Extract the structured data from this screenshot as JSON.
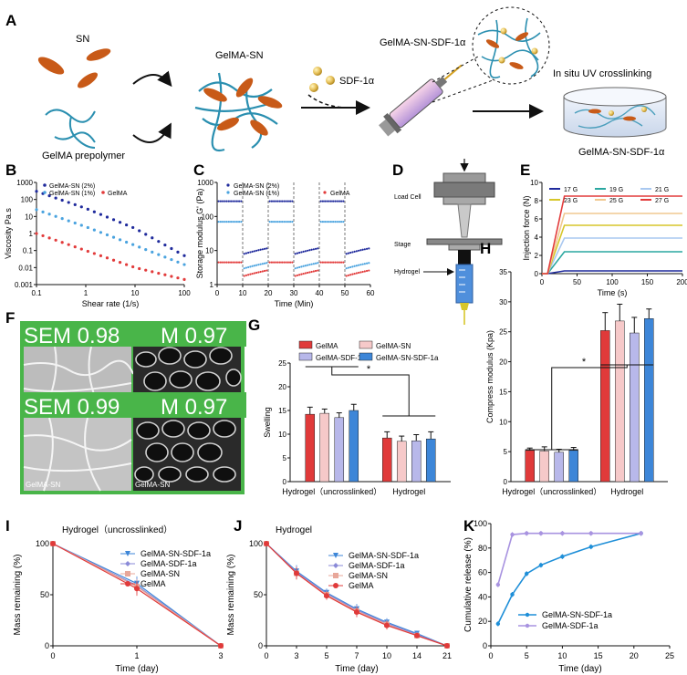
{
  "panels": {
    "A": {
      "letter": "A",
      "sn_label": "SN",
      "prepolymer_label": "GelMA prepolymer",
      "gelma_sn_label": "GelMA-SN",
      "sdf_label": "SDF-1α",
      "syringe_label": "GelMA-SN-SDF-1α",
      "uv_label": "In situ UV crosslinking",
      "dish_label": "GelMA-SN-SDF-1α"
    },
    "D": {
      "letter": "D",
      "load_cell": "Load Cell",
      "stage": "Stage",
      "hydrogel": "Hydrogel"
    },
    "F": {
      "letter": "F",
      "banners": [
        {
          "text": "SEM 0.98"
        },
        {
          "text": "M 0.97"
        },
        {
          "text": "SEM 0.99"
        },
        {
          "text": "M 0.97"
        }
      ],
      "captions": [
        "GelMA-SN",
        "GelMA-SN"
      ]
    }
  },
  "chart_data": [
    {
      "id": "B",
      "type": "scatter",
      "title": "",
      "xlabel": "Shear rate (1/s)",
      "ylabel": "Viscosity Pa.s",
      "xscale": "log",
      "yscale": "log",
      "xlim": [
        0.1,
        100
      ],
      "ylim": [
        0.001,
        1000
      ],
      "xticks": [
        "0.1",
        "1",
        "10",
        "100"
      ],
      "yticks": [
        "0.001",
        "0.01",
        "0.1",
        "1",
        "10",
        "100",
        "1000"
      ],
      "legend": [
        "GelMA-SN (2%)",
        "GelMA-SN (1%)",
        "GelMA"
      ],
      "colors": [
        "#1f2a9c",
        "#4aa3df",
        "#e23b3b"
      ],
      "series": [
        {
          "name": "GelMA-SN (2%)",
          "x": [
            0.1,
            1,
            10,
            100
          ],
          "y": [
            300,
            30,
            2,
            0.05
          ]
        },
        {
          "name": "GelMA-SN (1%)",
          "x": [
            0.1,
            1,
            10,
            100
          ],
          "y": [
            25,
            2.5,
            0.2,
            0.015
          ]
        },
        {
          "name": "GelMA",
          "x": [
            0.1,
            1,
            10,
            100
          ],
          "y": [
            1,
            0.1,
            0.01,
            0.002
          ]
        }
      ]
    },
    {
      "id": "C",
      "type": "scatter",
      "title": "",
      "xlabel": "Time (Min)",
      "ylabel": "Storage modulus G' (Pa)",
      "yscale": "log",
      "xlim": [
        0,
        60
      ],
      "ylim": [
        1,
        1000
      ],
      "xticks": [
        "0",
        "10",
        "20",
        "30",
        "40",
        "50",
        "60"
      ],
      "yticks": [
        "1",
        "10",
        "100",
        "1000"
      ],
      "legend": [
        "GelMA-SN (2%)",
        "GelMA-SN (1%)",
        "GelMA"
      ],
      "colors": [
        "#1f2a9c",
        "#4aa3df",
        "#e23b3b"
      ],
      "segments": [
        {
          "name": "GelMA-SN (2%)",
          "high": 280,
          "low": 8
        },
        {
          "name": "GelMA-SN (1%)",
          "high": 70,
          "low": 3
        },
        {
          "name": "GelMA",
          "high": 4.5,
          "low": 1.8
        }
      ]
    },
    {
      "id": "E",
      "type": "line",
      "title": "",
      "xlabel": "Time (s)",
      "ylabel": "Injection force (N)",
      "xlim": [
        0,
        200
      ],
      "ylim": [
        0,
        10
      ],
      "xticks": [
        "0",
        "50",
        "100",
        "150",
        "200"
      ],
      "yticks": [
        "0",
        "2",
        "4",
        "6",
        "8",
        "10"
      ],
      "series": [
        {
          "name": "17 G",
          "plateau": 0.3,
          "color": "#1f2a9c"
        },
        {
          "name": "19 G",
          "plateau": 2.4,
          "color": "#2aa7a0"
        },
        {
          "name": "21 G",
          "plateau": 3.9,
          "color": "#a9c8f0"
        },
        {
          "name": "23 G",
          "plateau": 5.3,
          "color": "#d7c62a"
        },
        {
          "name": "25 G",
          "plateau": 6.6,
          "color": "#f0c890"
        },
        {
          "name": "27 G",
          "plateau": 8.5,
          "color": "#e23b3b"
        }
      ]
    },
    {
      "id": "G",
      "type": "bar",
      "title": "",
      "ylabel": "Swelling",
      "ylim": [
        0,
        25
      ],
      "yticks": [
        "0",
        "5",
        "10",
        "15",
        "20",
        "25"
      ],
      "categories": [
        "Hydrogel（uncrosslinked）",
        "Hydrogel"
      ],
      "legend": [
        "GelMA",
        "GelMA-SN",
        "GelMA-SDF-1a",
        "GelMA-SN-SDF-1a"
      ],
      "colors": [
        "#e03a3a",
        "#f6c9c9",
        "#b8b8ea",
        "#3d86d8"
      ],
      "significance": "*",
      "series": [
        {
          "name": "GelMA",
          "values": [
            14.2,
            9.2
          ],
          "errors": [
            1.5,
            1.3
          ]
        },
        {
          "name": "GelMA-SN",
          "values": [
            14.4,
            8.5
          ],
          "errors": [
            0.9,
            1.1
          ]
        },
        {
          "name": "GelMA-SDF-1a",
          "values": [
            13.5,
            8.6
          ],
          "errors": [
            1.0,
            1.3
          ]
        },
        {
          "name": "GelMA-SN-SDF-1a",
          "values": [
            15.0,
            9.0
          ],
          "errors": [
            1.3,
            1.5
          ]
        }
      ]
    },
    {
      "id": "H",
      "type": "bar",
      "title": "",
      "ylabel": "Compress modulus (Kpa)",
      "ylim": [
        0,
        35
      ],
      "yticks": [
        "0",
        "5",
        "10",
        "15",
        "20",
        "25",
        "30",
        "35"
      ],
      "categories": [
        "Hydrogel（uncrosslinked）",
        "Hydrogel"
      ],
      "legend": [
        "GelMA",
        "GelMA-SN",
        "GelMA-SDF-1a",
        "GelMA-SN-SDF-1a"
      ],
      "colors": [
        "#e03a3a",
        "#f6c9c9",
        "#b8b8ea",
        "#3d86d8"
      ],
      "significance": "*",
      "series": [
        {
          "name": "GelMA",
          "values": [
            5.2,
            25.2
          ],
          "errors": [
            0.4,
            3.0
          ]
        },
        {
          "name": "GelMA-SN",
          "values": [
            5.1,
            26.8
          ],
          "errors": [
            0.7,
            2.8
          ]
        },
        {
          "name": "GelMA-SDF-1a",
          "values": [
            4.9,
            24.8
          ],
          "errors": [
            0.5,
            2.6
          ]
        },
        {
          "name": "GelMA-SN-SDF-1a",
          "values": [
            5.2,
            27.2
          ],
          "errors": [
            0.5,
            1.6
          ]
        }
      ]
    },
    {
      "id": "I",
      "type": "line",
      "title": "Hydrogel（uncrosslinked）",
      "xlabel": "Time (day)",
      "ylabel": "Mass remaining (%)",
      "x": [
        "0",
        "1",
        "3"
      ],
      "ylim": [
        0,
        100
      ],
      "yticks": [
        "0",
        "50",
        "100"
      ],
      "series": [
        {
          "name": "GelMA-SN-SDF-1a",
          "color": "#3d86d8",
          "marker": "tri",
          "values": [
            100,
            61,
            0
          ]
        },
        {
          "name": "GelMA-SDF-1a",
          "color": "#8a8ad8",
          "marker": "diamond",
          "values": [
            100,
            59,
            0
          ]
        },
        {
          "name": "GelMA-SN",
          "color": "#e8a79a",
          "marker": "square",
          "values": [
            100,
            58,
            0
          ]
        },
        {
          "name": "GelMA",
          "color": "#e03a3a",
          "marker": "circle",
          "values": [
            100,
            56,
            0
          ]
        }
      ],
      "errors": [
        0,
        7,
        0
      ]
    },
    {
      "id": "J",
      "type": "line",
      "title": "Hydrogel",
      "xlabel": "Time (day)",
      "ylabel": "Mass remaining (%)",
      "x": [
        "0",
        "3",
        "5",
        "7",
        "10",
        "14",
        "21"
      ],
      "ylim": [
        0,
        100
      ],
      "yticks": [
        "0",
        "50",
        "100"
      ],
      "series": [
        {
          "name": "GelMA-SN-SDF-1a",
          "color": "#3d86d8",
          "marker": "tri",
          "values": [
            100,
            73,
            52,
            36,
            23,
            12,
            0
          ]
        },
        {
          "name": "GelMA-SDF-1a",
          "color": "#8a8ad8",
          "marker": "diamond",
          "values": [
            100,
            72,
            51,
            35,
            22,
            11,
            0
          ]
        },
        {
          "name": "GelMA-SN",
          "color": "#e8a79a",
          "marker": "square",
          "values": [
            100,
            71,
            50,
            34,
            21,
            10,
            0
          ]
        },
        {
          "name": "GelMA",
          "color": "#e03a3a",
          "marker": "circle",
          "values": [
            100,
            71,
            49,
            33,
            20,
            10,
            0
          ]
        }
      ],
      "errors": [
        0,
        6,
        4,
        5,
        4,
        2,
        0
      ]
    },
    {
      "id": "K",
      "type": "line",
      "title": "",
      "xlabel": "Time (day)",
      "ylabel": "Cumulative release (%)",
      "xlim": [
        0,
        25
      ],
      "ylim": [
        0,
        100
      ],
      "xticks": [
        "0",
        "5",
        "10",
        "15",
        "20",
        "25"
      ],
      "yticks": [
        "0",
        "20",
        "40",
        "60",
        "80",
        "100"
      ],
      "series": [
        {
          "name": "GelMA-SN-SDF-1a",
          "color": "#1f8fd8",
          "x": [
            1,
            3,
            5,
            7,
            10,
            14,
            21
          ],
          "y": [
            18,
            42,
            59,
            66,
            73,
            81,
            92
          ]
        },
        {
          "name": "GelMA-SDF-1a",
          "color": "#a893e0",
          "x": [
            1,
            3,
            5,
            7,
            10,
            14,
            21
          ],
          "y": [
            50,
            91,
            92,
            92,
            92,
            92,
            92
          ]
        }
      ]
    }
  ]
}
